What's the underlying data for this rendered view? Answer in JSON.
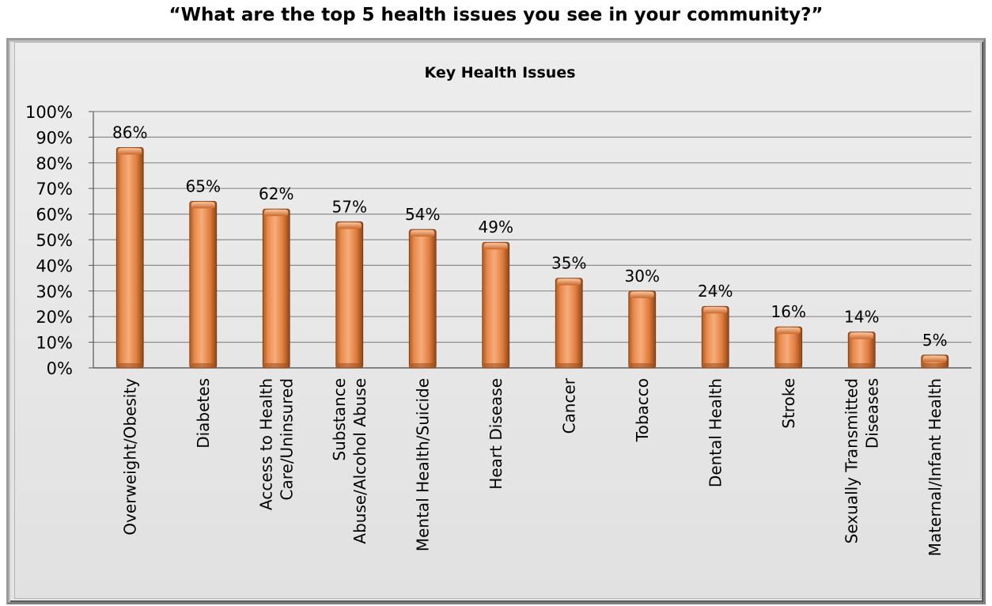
{
  "page_title": "“What are the top 5 health issues you see in your community?”",
  "colors": {
    "bar_fill": "#e8894a",
    "bar_dark": "#9c4f1d",
    "bar_light": "#f7b283",
    "grid": "#8c8c8c",
    "background": "#e4e4e4"
  },
  "chart_data": {
    "type": "bar",
    "title": "Key Health Issues",
    "xlabel": "",
    "ylabel": "",
    "ylim": [
      0,
      100
    ],
    "grid": true,
    "legend": "none",
    "y_ticks": [
      "0%",
      "10%",
      "20%",
      "30%",
      "40%",
      "50%",
      "60%",
      "70%",
      "80%",
      "90%",
      "100%"
    ],
    "categories": [
      [
        "Overweight/Obesity"
      ],
      [
        "Diabetes"
      ],
      [
        "Access to Health",
        "Care/Uninsured"
      ],
      [
        "Substance",
        "Abuse/Alcohol Abuse"
      ],
      [
        "Mental Health/Suicide"
      ],
      [
        "Heart Disease"
      ],
      [
        "Cancer"
      ],
      [
        "Tobacco"
      ],
      [
        "Dental Health"
      ],
      [
        "Stroke"
      ],
      [
        "Sexually Transmitted",
        "Diseases"
      ],
      [
        "Maternal/Infant Health"
      ]
    ],
    "values": [
      86,
      65,
      62,
      57,
      54,
      49,
      35,
      30,
      24,
      16,
      14,
      5
    ],
    "data_labels": [
      "86%",
      "65%",
      "62%",
      "57%",
      "54%",
      "49%",
      "35%",
      "30%",
      "24%",
      "16%",
      "14%",
      "5%"
    ]
  }
}
